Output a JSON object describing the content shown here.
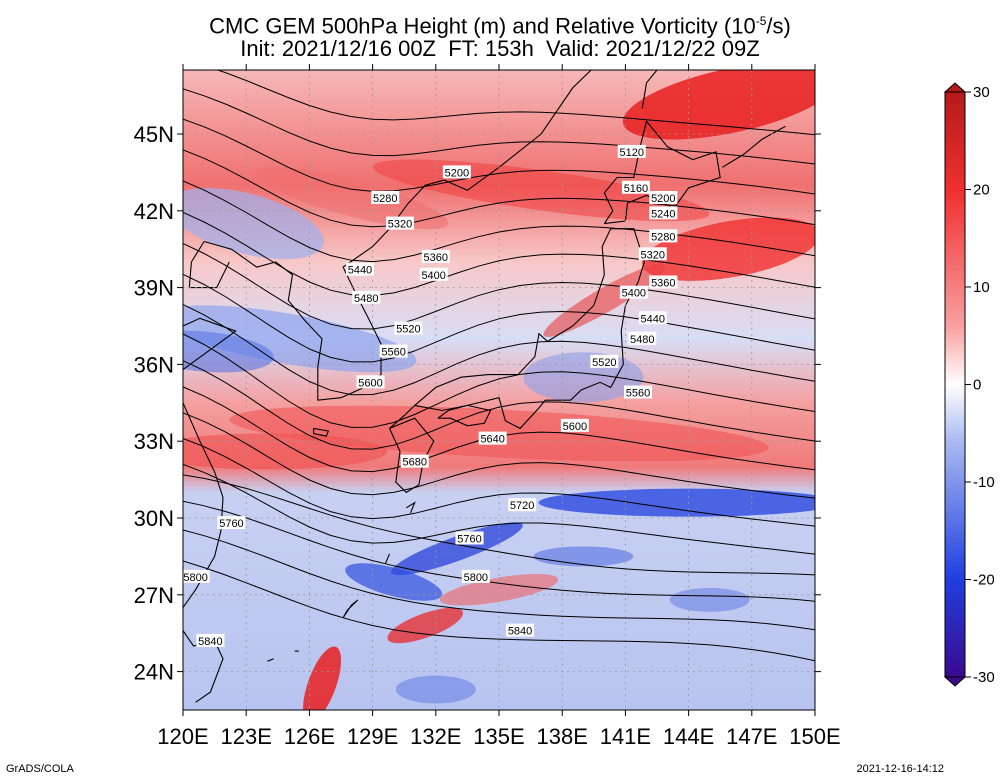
{
  "title": {
    "line1_prefix": "CMC GEM 500hPa Height (m) and Relative Vorticity (10",
    "line1_exp": "-5",
    "line1_suffix": "/s)",
    "line2": "Init: 2021/12/16 00Z  FT: 153h  Valid: 2021/12/22 09Z"
  },
  "axes": {
    "lon_labels": [
      "120E",
      "123E",
      "126E",
      "129E",
      "132E",
      "135E",
      "138E",
      "141E",
      "144E",
      "147E",
      "150E"
    ],
    "lat_labels": [
      "24N",
      "27N",
      "30N",
      "33N",
      "36N",
      "39N",
      "42N",
      "45N"
    ],
    "lon_range": [
      120,
      150
    ],
    "lat_range": [
      22.5,
      47.5
    ]
  },
  "colorbar": {
    "ticks": [
      "30",
      "20",
      "10",
      "0",
      "-10",
      "-20",
      "-30"
    ],
    "range": [
      -30,
      30
    ],
    "colors": {
      "strong_positive": "#b41a1a",
      "positive": "#f03030",
      "weak_positive": "#f8a0a0",
      "zero": "#ffffff",
      "weak_negative": "#a8b8f0",
      "negative": "#2040e0",
      "strong_negative": "#3a0a90"
    }
  },
  "contours": {
    "interval_m": 40,
    "lines": [
      {
        "value": 5120,
        "label": "5120",
        "label_lon": 141.3,
        "label_lat": 44.3
      },
      {
        "value": 5160,
        "label": "5160",
        "label_lon": 141.5,
        "label_lat": 42.9
      },
      {
        "value": 5200,
        "label": "5200",
        "label_lon": 133.0,
        "label_lat": 43.5
      },
      {
        "value": 5200,
        "label": "5200",
        "label_lon": 142.8,
        "label_lat": 42.5
      },
      {
        "value": 5240,
        "label": "5240",
        "label_lon": 142.8,
        "label_lat": 41.9
      },
      {
        "value": 5280,
        "label": "5280",
        "label_lon": 129.6,
        "label_lat": 42.5
      },
      {
        "value": 5280,
        "label": "5280",
        "label_lon": 142.8,
        "label_lat": 41.0
      },
      {
        "value": 5320,
        "label": "5320",
        "label_lon": 130.3,
        "label_lat": 41.5
      },
      {
        "value": 5320,
        "label": "5320",
        "label_lon": 142.3,
        "label_lat": 40.3
      },
      {
        "value": 5360,
        "label": "5360",
        "label_lon": 132.0,
        "label_lat": 40.2
      },
      {
        "value": 5360,
        "label": "5360",
        "label_lon": 142.8,
        "label_lat": 39.2
      },
      {
        "value": 5400,
        "label": "5400",
        "label_lon": 131.9,
        "label_lat": 39.5
      },
      {
        "value": 5400,
        "label": "5400",
        "label_lon": 141.4,
        "label_lat": 38.8
      },
      {
        "value": 5440,
        "label": "5440",
        "label_lon": 128.4,
        "label_lat": 39.7
      },
      {
        "value": 5440,
        "label": "5440",
        "label_lon": 142.3,
        "label_lat": 37.8
      },
      {
        "value": 5480,
        "label": "5480",
        "label_lon": 128.7,
        "label_lat": 38.6
      },
      {
        "value": 5480,
        "label": "5480",
        "label_lon": 141.8,
        "label_lat": 37.0
      },
      {
        "value": 5520,
        "label": "5520",
        "label_lon": 130.7,
        "label_lat": 37.4
      },
      {
        "value": 5520,
        "label": "5520",
        "label_lon": 140.0,
        "label_lat": 36.1
      },
      {
        "value": 5560,
        "label": "5560",
        "label_lon": 130.0,
        "label_lat": 36.5
      },
      {
        "value": 5560,
        "label": "5560",
        "label_lon": 141.6,
        "label_lat": 34.9
      },
      {
        "value": 5600,
        "label": "5600",
        "label_lon": 128.9,
        "label_lat": 35.3
      },
      {
        "value": 5600,
        "label": "5600",
        "label_lon": 138.6,
        "label_lat": 33.6
      },
      {
        "value": 5640,
        "label": "5640",
        "label_lon": 134.7,
        "label_lat": 33.1
      },
      {
        "value": 5680,
        "label": "5680",
        "label_lon": 131.0,
        "label_lat": 32.2
      },
      {
        "value": 5720,
        "label": "5720",
        "label_lon": 136.1,
        "label_lat": 30.5
      },
      {
        "value": 5760,
        "label": "5760",
        "label_lon": 122.3,
        "label_lat": 29.8
      },
      {
        "value": 5760,
        "label": "5760",
        "label_lon": 133.6,
        "label_lat": 29.2
      },
      {
        "value": 5800,
        "label": "5800",
        "label_lon": 120.6,
        "label_lat": 27.7
      },
      {
        "value": 5800,
        "label": "5800",
        "label_lon": 133.9,
        "label_lat": 27.7
      },
      {
        "value": 5840,
        "label": "5840",
        "label_lon": 121.3,
        "label_lat": 25.2
      },
      {
        "value": 5840,
        "label": "5840",
        "label_lon": 136.0,
        "label_lat": 25.6
      }
    ]
  },
  "footer": {
    "left": "GrADS/COLA",
    "right": "2021-12-16-14:12"
  }
}
